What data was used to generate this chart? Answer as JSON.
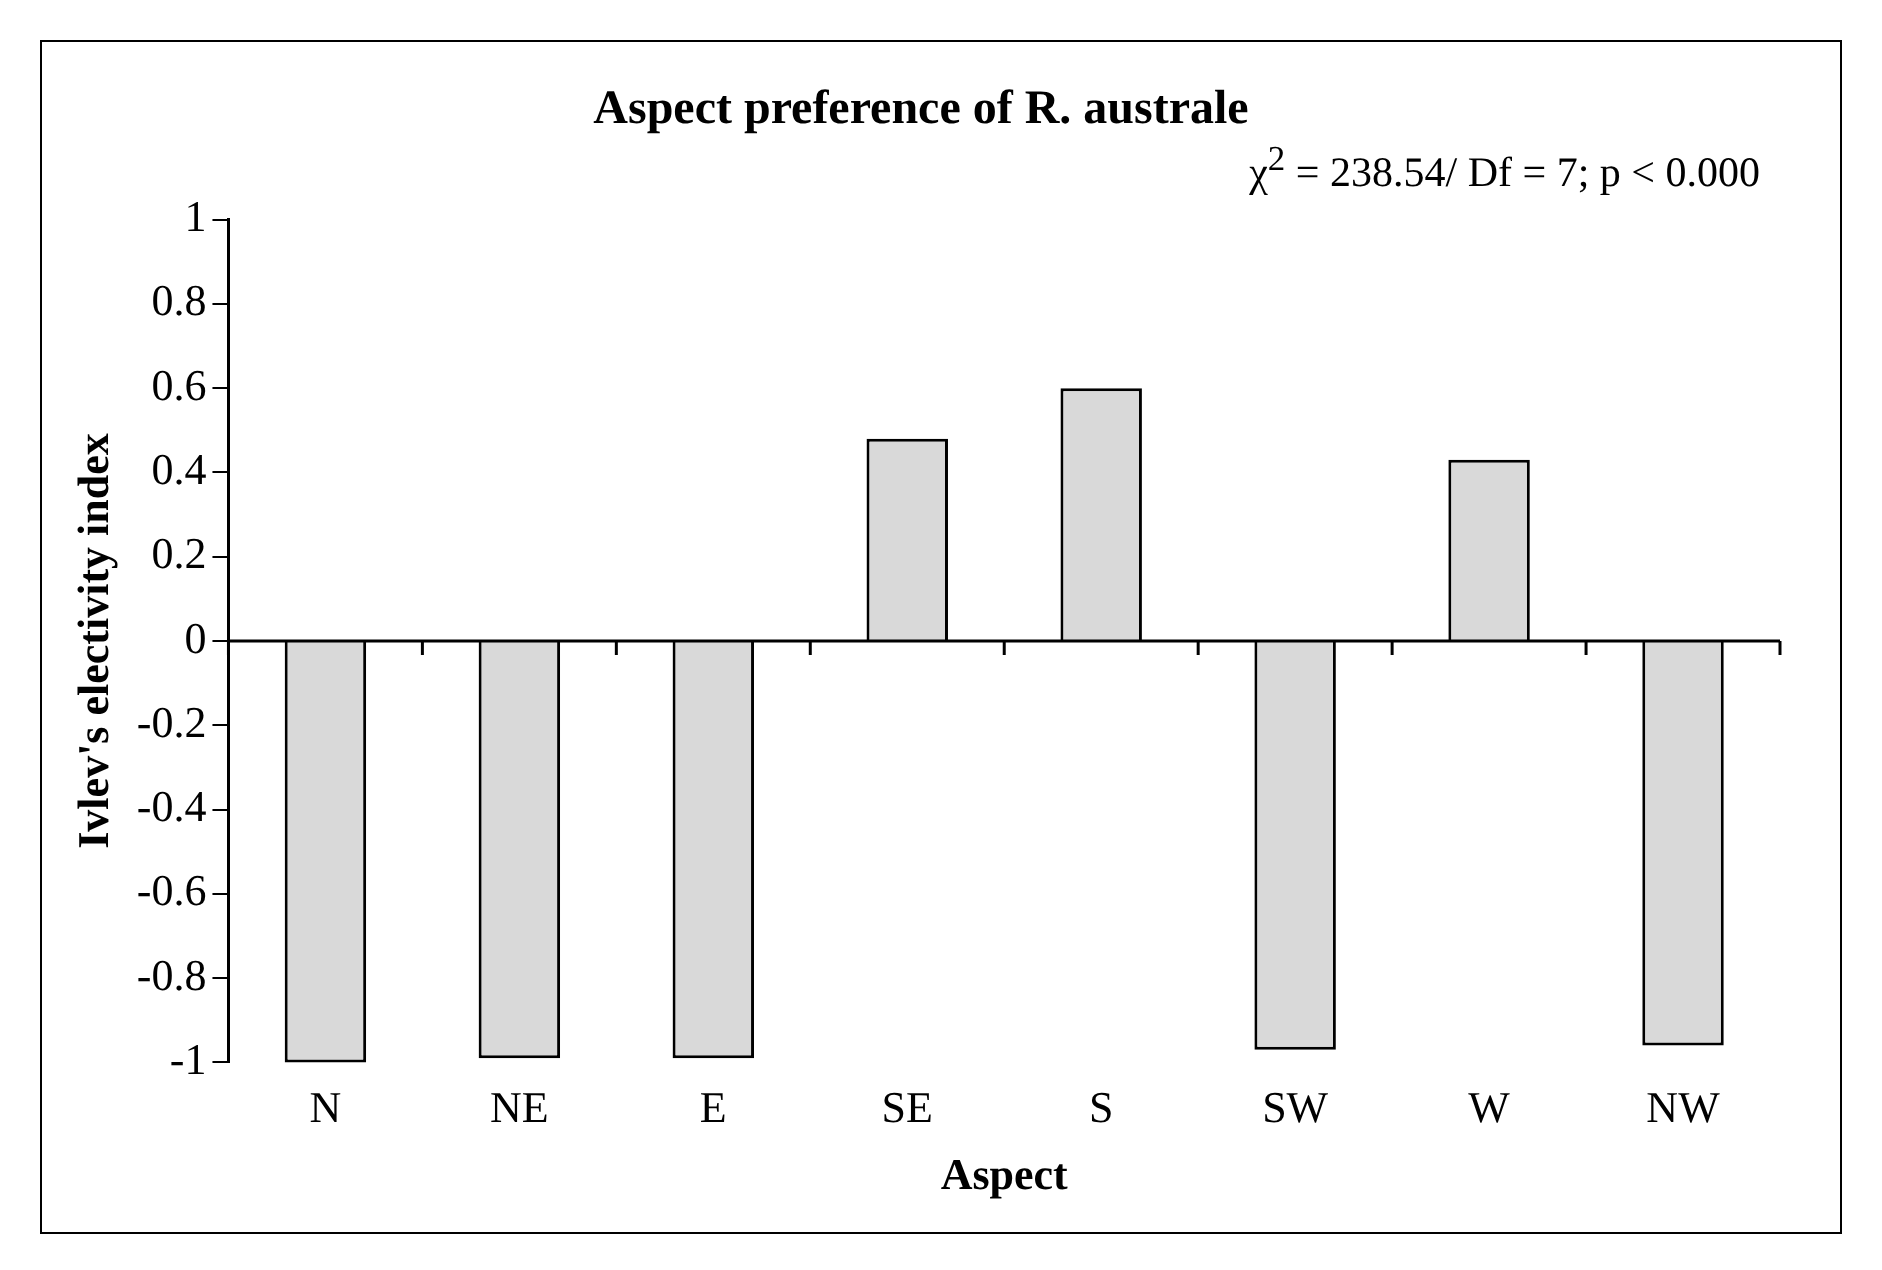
{
  "chart_data": {
    "type": "bar",
    "title": "Aspect preference of R. australe",
    "xlabel": "Aspect",
    "ylabel": "Ivlev's electivity index",
    "annotations": [
      "χ$^{2}$ = 238.54/ Df = 7; p < 0.000"
    ],
    "categories": [
      "N",
      "NE",
      "E",
      "SE",
      "S",
      "SW",
      "W",
      "NW"
    ],
    "values": [
      -1,
      -0.99,
      -0.99,
      0.48,
      0.6,
      -0.97,
      0.43,
      -0.96
    ],
    "color": "#d9d9d9",
    "ylim": [
      -1,
      1
    ],
    "yticks": [
      -1,
      -0.8,
      -0.6,
      -0.4,
      -0.2,
      0,
      0.2,
      0.4,
      0.6,
      0.8,
      1
    ],
    "legend": false
  }
}
